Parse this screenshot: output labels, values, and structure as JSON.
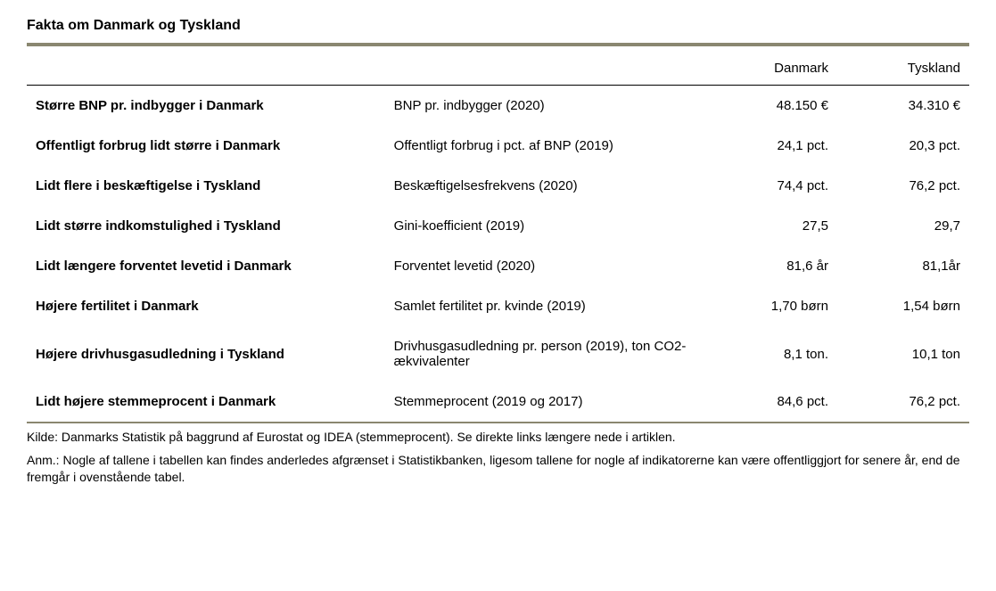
{
  "title": "Fakta om Danmark og Tyskland",
  "columns": {
    "blank1": "",
    "blank2": "",
    "dk": "Danmark",
    "de": "Tyskland"
  },
  "rows": [
    {
      "label": "Større BNP pr. indbygger i Danmark",
      "metric": "BNP pr. indbygger (2020)",
      "dk": "48.150 €",
      "de": "34.310 €"
    },
    {
      "label": "Offentligt forbrug lidt større i Danmark",
      "metric": "Offentligt forbrug i pct. af BNP (2019)",
      "dk": "24,1 pct.",
      "de": "20,3 pct."
    },
    {
      "label": "Lidt flere i beskæftigelse i Tyskland",
      "metric": "Beskæftigelsesfrekvens (2020)",
      "dk": "74,4 pct.",
      "de": "76,2 pct."
    },
    {
      "label": "Lidt større indkomstulighed i Tyskland",
      "metric": "Gini-koefficient (2019)",
      "dk": "27,5",
      "de": "29,7"
    },
    {
      "label": "Lidt længere forventet levetid i Danmark",
      "metric": "Forventet levetid (2020)",
      "dk": "81,6 år",
      "de": "81,1år"
    },
    {
      "label": "Højere fertilitet i Danmark",
      "metric": "Samlet fertilitet pr. kvinde (2019)",
      "dk": "1,70 børn",
      "de": "1,54 børn"
    },
    {
      "label": "Højere drivhusgasudledning i Tyskland",
      "metric": "Drivhusgasudledning pr. person (2019), ton CO2-ækvivalenter",
      "dk": "8,1 ton.",
      "de": "10,1 ton"
    },
    {
      "label": "Lidt højere stemmeprocent i Danmark",
      "metric": "Stemmeprocent (2019 og 2017)",
      "dk": "84,6 pct.",
      "de": "76,2 pct."
    }
  ],
  "footnotes": {
    "source": "Kilde: Danmarks Statistik på baggrund af Eurostat og IDEA (stemmeprocent). Se direkte links længere nede i artiklen.",
    "note": "Anm.: Nogle af tallene i tabellen kan findes anderledes afgrænset i Statistikbanken, ligesom tallene for nogle af indikatorerne kan være offentliggjort for senere år, end de fremgår i ovenstående tabel."
  },
  "style": {
    "accent_color": "#8a8770",
    "background_color": "#ffffff",
    "text_color": "#000000",
    "title_fontsize": 16,
    "body_fontsize": 15,
    "footnote_fontsize": 14
  }
}
